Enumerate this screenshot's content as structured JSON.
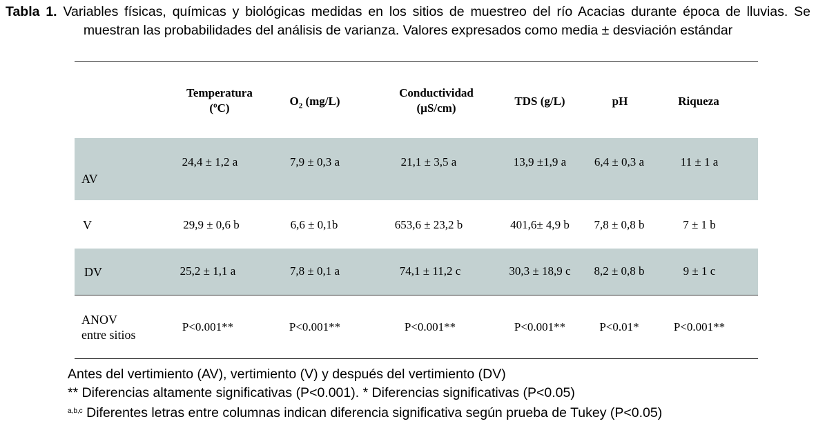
{
  "caption": {
    "label": "Tabla 1.",
    "text": "Variables físicas, químicas y biológicas medidas en los sitios de muestreo del río Acacias durante época de lluvias. Se muestran las probabilidades del análisis de varianza. Valores expresados como media ± desviación estándar"
  },
  "table": {
    "headers": {
      "temp_1": "Temperatura",
      "temp_2": "(ºC)",
      "o2_main": "O",
      "o2_sub": "2",
      "o2_unit": " (mg/L)",
      "cond_1": "Conductividad",
      "cond_2": "(µS/cm)",
      "tds": "TDS (g/L)",
      "ph": "pH",
      "riqueza": "Riqueza"
    },
    "rows": [
      {
        "label": "AV",
        "cells": [
          "24,4 ± 1,2 a",
          "7,9 ± 0,3 a",
          "21,1 ± 3,5 a",
          "13,9 ±1,9 a",
          "6,4 ± 0,3 a",
          "11 ± 1 a"
        ]
      },
      {
        "label": "V",
        "cells": [
          "29,9 ± 0,6 b",
          "6,6 ± 0,1b",
          "653,6 ± 23,2 b",
          "401,6± 4,9 b",
          "7,8 ± 0,8 b",
          "7 ± 1 b"
        ]
      },
      {
        "label": "DV",
        "cells": [
          "25,2 ± 1,1 a",
          "7,8 ± 0,1 a",
          "74,1 ± 11,2 c",
          "30,3 ± 18,9 c",
          "8,2 ± 0,8 b",
          "9 ± 1 c"
        ]
      }
    ],
    "anova": {
      "label_1": "ANOV",
      "label_2": "entre sitios",
      "cells": [
        "P<0.001**",
        "P<0.001**",
        "P<0.001**",
        "P<0.001**",
        "P<0.01*",
        "P<0.001**"
      ]
    }
  },
  "notes": {
    "line1": "Antes del vertimiento (AV), vertimiento (V) y después del vertimiento (DV)",
    "line2": "** Diferencias  altamente significativas (P<0.001). * Diferencias significativas (P<0.05)",
    "line3_sup": "a,b,c",
    "line3": " Diferentes letras entre columnas indican diferencia significativa según prueba de Tukey (P<0.05)"
  },
  "colors": {
    "band": "#c3d1d1",
    "rule": "#333333"
  }
}
